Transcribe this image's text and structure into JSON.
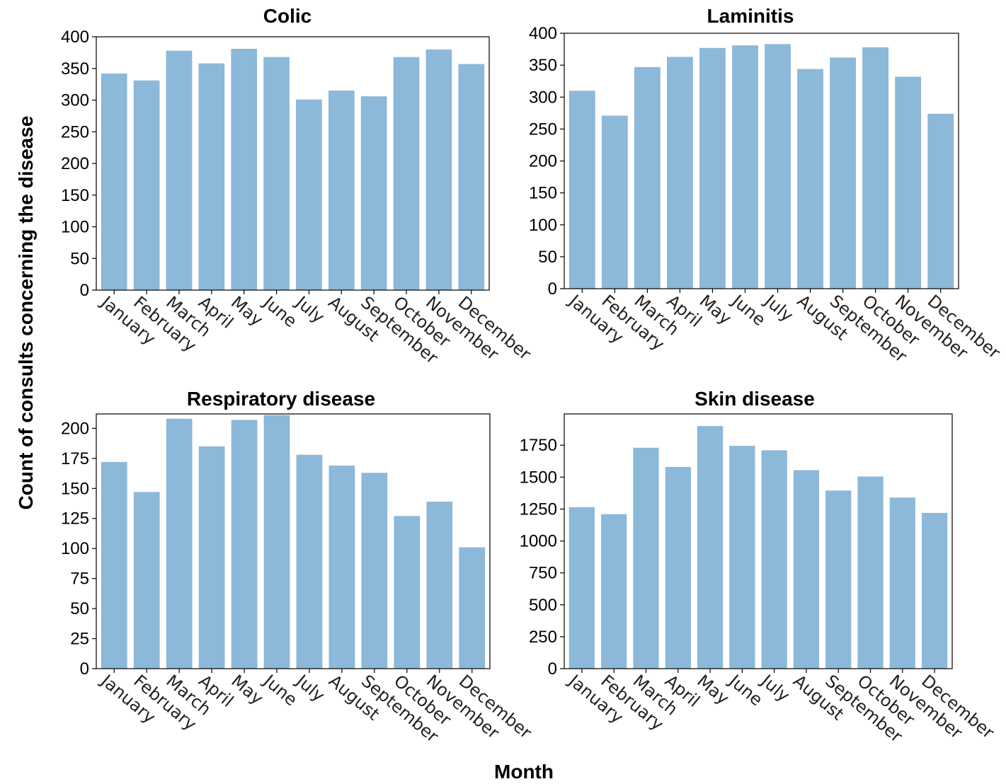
{
  "figure": {
    "xlabel": "Month",
    "ylabel": "Count of consults concerning the disease",
    "bar_color": "#8cb8d9"
  },
  "chart_data": [
    {
      "type": "bar",
      "title": "Colic",
      "categories": [
        "January",
        "February",
        "March",
        "April",
        "May",
        "June",
        "July",
        "August",
        "September",
        "October",
        "November",
        "December"
      ],
      "values": [
        342,
        331,
        378,
        358,
        381,
        368,
        301,
        315,
        306,
        368,
        380,
        357
      ],
      "ylim": [
        0,
        400
      ],
      "yticks": [
        0,
        50,
        100,
        150,
        200,
        250,
        300,
        350,
        400
      ]
    },
    {
      "type": "bar",
      "title": "Laminitis",
      "categories": [
        "January",
        "February",
        "March",
        "April",
        "May",
        "June",
        "July",
        "August",
        "September",
        "October",
        "November",
        "December"
      ],
      "values": [
        310,
        271,
        347,
        363,
        377,
        381,
        383,
        344,
        362,
        378,
        332,
        274
      ],
      "ylim": [
        0,
        400
      ],
      "yticks": [
        0,
        50,
        100,
        150,
        200,
        250,
        300,
        350,
        400
      ]
    },
    {
      "type": "bar",
      "title": "Respiratory disease",
      "categories": [
        "January",
        "February",
        "March",
        "April",
        "May",
        "June",
        "July",
        "August",
        "September",
        "October",
        "November",
        "December"
      ],
      "values": [
        172,
        147,
        208,
        185,
        207,
        211,
        178,
        169,
        163,
        127,
        139,
        101
      ],
      "ylim": [
        0,
        212
      ],
      "yticks": [
        0,
        25,
        50,
        75,
        100,
        125,
        150,
        175,
        200
      ]
    },
    {
      "type": "bar",
      "title": "Skin disease",
      "categories": [
        "January",
        "February",
        "March",
        "April",
        "May",
        "June",
        "July",
        "August",
        "September",
        "October",
        "November",
        "December"
      ],
      "values": [
        1265,
        1210,
        1730,
        1580,
        1900,
        1745,
        1710,
        1555,
        1395,
        1505,
        1340,
        1220
      ],
      "ylim": [
        0,
        1995
      ],
      "yticks": [
        0,
        250,
        500,
        750,
        1000,
        1250,
        1500,
        1750
      ]
    }
  ]
}
